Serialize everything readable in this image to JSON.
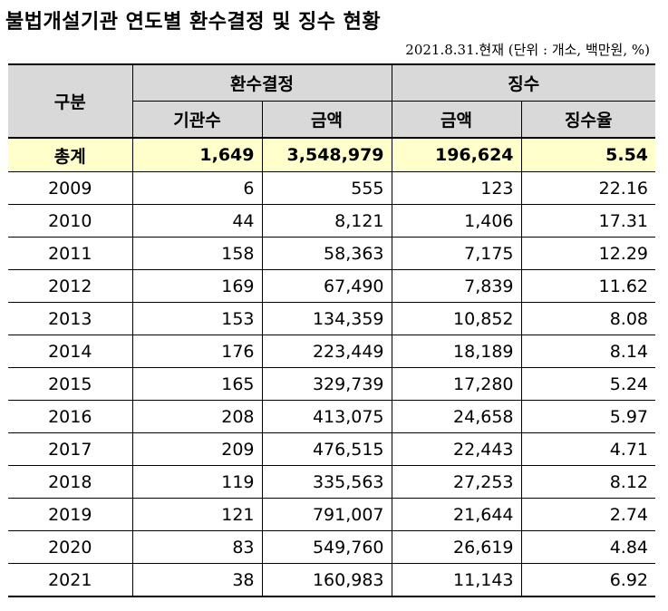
{
  "title": "불법개설기관 연도별 환수결정 및 징수 현황",
  "unit_note": "2021.8.31.현재 (단위 : 개소, 백만원, %)",
  "headers": {
    "category": "구분",
    "group_decision": "환수결정",
    "group_collection": "징수",
    "institutions": "기관수",
    "decision_amount": "금액",
    "collection_amount": "금액",
    "collection_rate": "징수율"
  },
  "total": {
    "label": "총계",
    "institutions": "1,649",
    "decision_amount": "3,548,979",
    "collection_amount": "196,624",
    "collection_rate": "5.54"
  },
  "rows": [
    {
      "year": "2009",
      "institutions": "6",
      "decision_amount": "555",
      "collection_amount": "123",
      "collection_rate": "22.16"
    },
    {
      "year": "2010",
      "institutions": "44",
      "decision_amount": "8,121",
      "collection_amount": "1,406",
      "collection_rate": "17.31"
    },
    {
      "year": "2011",
      "institutions": "158",
      "decision_amount": "58,363",
      "collection_amount": "7,175",
      "collection_rate": "12.29"
    },
    {
      "year": "2012",
      "institutions": "169",
      "decision_amount": "67,490",
      "collection_amount": "7,839",
      "collection_rate": "11.62"
    },
    {
      "year": "2013",
      "institutions": "153",
      "decision_amount": "134,359",
      "collection_amount": "10,852",
      "collection_rate": "8.08"
    },
    {
      "year": "2014",
      "institutions": "176",
      "decision_amount": "223,449",
      "collection_amount": "18,189",
      "collection_rate": "8.14"
    },
    {
      "year": "2015",
      "institutions": "165",
      "decision_amount": "329,739",
      "collection_amount": "17,280",
      "collection_rate": "5.24"
    },
    {
      "year": "2016",
      "institutions": "208",
      "decision_amount": "413,075",
      "collection_amount": "24,658",
      "collection_rate": "5.97"
    },
    {
      "year": "2017",
      "institutions": "209",
      "decision_amount": "476,515",
      "collection_amount": "22,443",
      "collection_rate": "4.71"
    },
    {
      "year": "2018",
      "institutions": "119",
      "decision_amount": "335,563",
      "collection_amount": "27,253",
      "collection_rate": "8.12"
    },
    {
      "year": "2019",
      "institutions": "121",
      "decision_amount": "791,007",
      "collection_amount": "21,644",
      "collection_rate": "2.74"
    },
    {
      "year": "2020",
      "institutions": "83",
      "decision_amount": "549,760",
      "collection_amount": "26,619",
      "collection_rate": "4.84"
    },
    {
      "year": "2021",
      "institutions": "38",
      "decision_amount": "160,983",
      "collection_amount": "11,143",
      "collection_rate": "6.92"
    }
  ]
}
